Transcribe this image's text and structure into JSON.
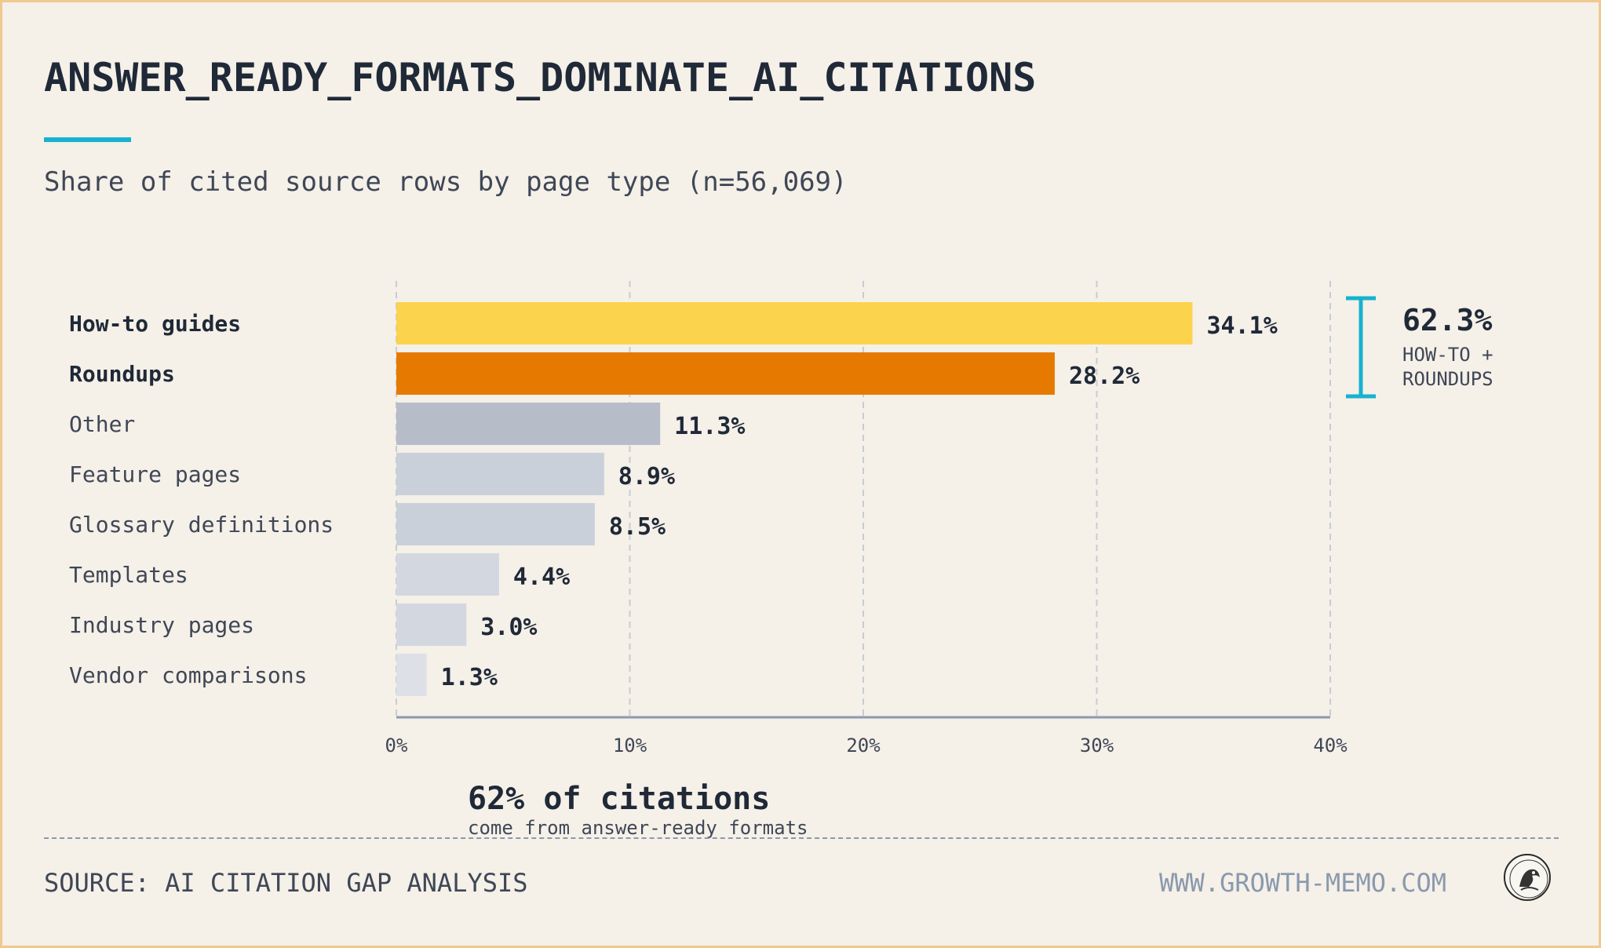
{
  "title": "ANSWER_READY_FORMATS_DOMINATE_AI_CITATIONS",
  "subtitle": "Share of cited source rows by page type (n=56,069)",
  "colors": {
    "accent": "#17b2cf",
    "highlight_1": "#fcd34d",
    "highlight_2": "#e67a00",
    "other": "#b6bdc9"
  },
  "chart_data": {
    "type": "bar",
    "orientation": "horizontal",
    "categories": [
      "How-to guides",
      "Roundups",
      "Other",
      "Feature pages",
      "Glossary definitions",
      "Templates",
      "Industry pages",
      "Vendor comparisons"
    ],
    "values": [
      34.1,
      28.2,
      11.3,
      8.9,
      8.5,
      4.4,
      3.0,
      1.3
    ],
    "value_labels": [
      "34.1%",
      "28.2%",
      "11.3%",
      "8.9%",
      "8.5%",
      "4.4%",
      "3.0%",
      "1.3%"
    ],
    "bar_colors": [
      "#fcd34d",
      "#e67a00",
      "#b6bdc9",
      "#c9d0da",
      "#c9d0da",
      "#d3d8e0",
      "#d3d8e0",
      "#dde1e7"
    ],
    "emphasized": [
      true,
      true,
      false,
      false,
      false,
      false,
      false,
      false
    ],
    "xlim": [
      0,
      40
    ],
    "xticks": [
      0,
      10,
      20,
      30,
      40
    ],
    "xtick_labels": [
      "0%",
      "10%",
      "20%",
      "30%",
      "40%"
    ],
    "grid": "vertical dashed",
    "bracket_annotation": {
      "value": "62.3%",
      "line1": "HOW-TO +",
      "line2": "ROUNDUPS",
      "spans_categories": [
        "How-to guides",
        "Roundups"
      ]
    },
    "callout": {
      "headline": "62% of citations",
      "subtext": "come from answer-ready formats"
    }
  },
  "footer": {
    "source": "SOURCE: AI CITATION GAP ANALYSIS",
    "site": "WWW.GROWTH-MEMO.COM"
  }
}
